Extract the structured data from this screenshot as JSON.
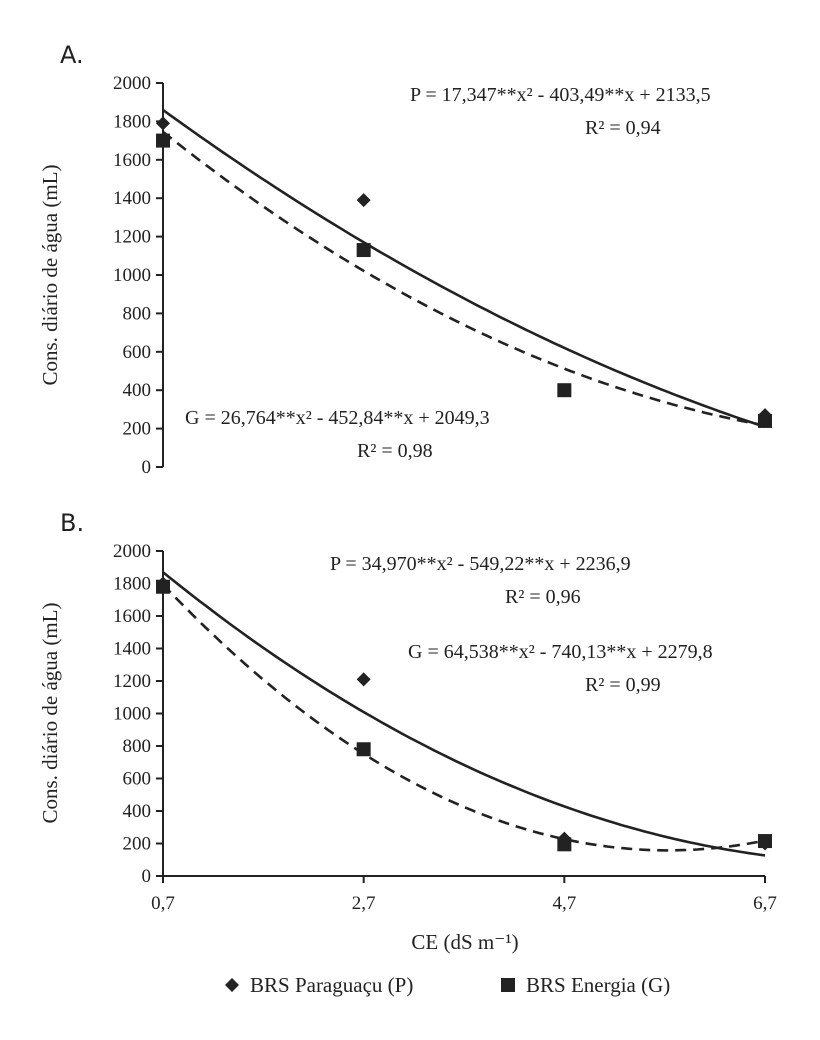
{
  "chart_data": [
    {
      "type": "scatter",
      "panel_label": "A.",
      "ylabel": "Cons. diário de água (mL)",
      "xlabel": "",
      "ylim": [
        0,
        2000
      ],
      "yticks": [
        "0",
        "200",
        "400",
        "600",
        "800",
        "1000",
        "1200",
        "1400",
        "1600",
        "1800",
        "2000"
      ],
      "x": [
        0.7,
        2.7,
        4.7,
        6.7
      ],
      "series": [
        {
          "name": "BRS Paraguaçu (P)",
          "marker": "diamond",
          "line": "solid",
          "values": [
            1790,
            1390,
            400,
            270
          ],
          "fit": {
            "a": 17.347,
            "b": -403.49,
            "c": 2133.5
          },
          "equation": "P = 17,347**x² - 403,49**x + 2133,5",
          "r2": "R² = 0,94"
        },
        {
          "name": "BRS Energia (G)",
          "marker": "square",
          "line": "dashed",
          "values": [
            1700,
            1130,
            400,
            240
          ],
          "fit": {
            "a": 26.764,
            "b": -452.84,
            "c": 2049.3
          },
          "equation": "G = 26,764**x² - 452,84**x + 2049,3",
          "r2": "R² = 0,98"
        }
      ]
    },
    {
      "type": "scatter",
      "panel_label": "B.",
      "ylabel": "Cons. diário de água (mL)",
      "xlabel": "CE (dS m⁻¹)",
      "ylim": [
        0,
        2000
      ],
      "yticks": [
        "0",
        "200",
        "400",
        "600",
        "800",
        "1000",
        "1200",
        "1400",
        "1600",
        "1800",
        "2000"
      ],
      "x": [
        0.7,
        2.7,
        4.7,
        6.7
      ],
      "xticks": [
        "0,7",
        "2,7",
        "4,7",
        "6,7"
      ],
      "series": [
        {
          "name": "BRS Paraguaçu (P)",
          "marker": "diamond",
          "line": "solid",
          "values": [
            1800,
            1210,
            230,
            200
          ],
          "fit": {
            "a": 34.97,
            "b": -549.22,
            "c": 2236.9
          },
          "equation": "P = 34,970**x² - 549,22**x + 2236,9",
          "r2": "R² = 0,96"
        },
        {
          "name": "BRS Energia (G)",
          "marker": "square",
          "line": "dashed",
          "values": [
            1780,
            780,
            195,
            215
          ],
          "fit": {
            "a": 64.538,
            "b": -740.13,
            "c": 2279.8
          },
          "equation": "G = 64,538**x² - 740,13**x + 2279,8",
          "r2": "R² = 0,99"
        }
      ]
    }
  ],
  "legend": {
    "items": [
      {
        "label": "BRS Paraguaçu (P)",
        "marker": "diamond"
      },
      {
        "label": "BRS Energia (G)",
        "marker": "square"
      }
    ]
  },
  "colors": {
    "ink": "#222222"
  }
}
